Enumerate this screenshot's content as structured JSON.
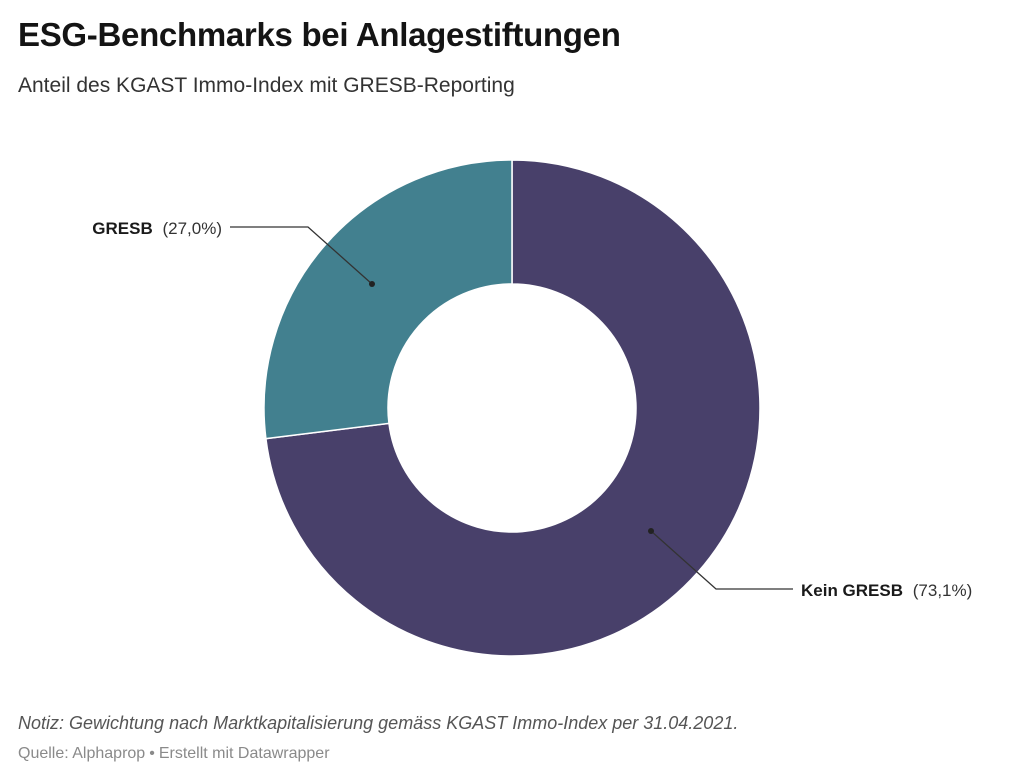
{
  "header": {
    "title": "ESG-Benchmarks bei Anlagestiftungen",
    "subtitle": "Anteil des KGAST Immo-Index mit GRESB-Reporting"
  },
  "chart_data": {
    "type": "pie",
    "variant": "donut",
    "title": "ESG-Benchmarks bei Anlagestiftungen",
    "subtitle": "Anteil des KGAST Immo-Index mit GRESB-Reporting",
    "slices": [
      {
        "label": "Kein GRESB",
        "value": 73.1,
        "value_label": "(73,1%)",
        "color": "#48406a"
      },
      {
        "label": "GRESB",
        "value": 27.0,
        "value_label": "(27,0%)",
        "color": "#42808f"
      }
    ]
  },
  "footer": {
    "note": "Notiz: Gewichtung nach Marktkapitalisierung gemäss KGAST Immo-Index per 31.04.2021.",
    "source": "Quelle: Alphaprop",
    "separator": "•",
    "credit": "Erstellt mit Datawrapper"
  }
}
